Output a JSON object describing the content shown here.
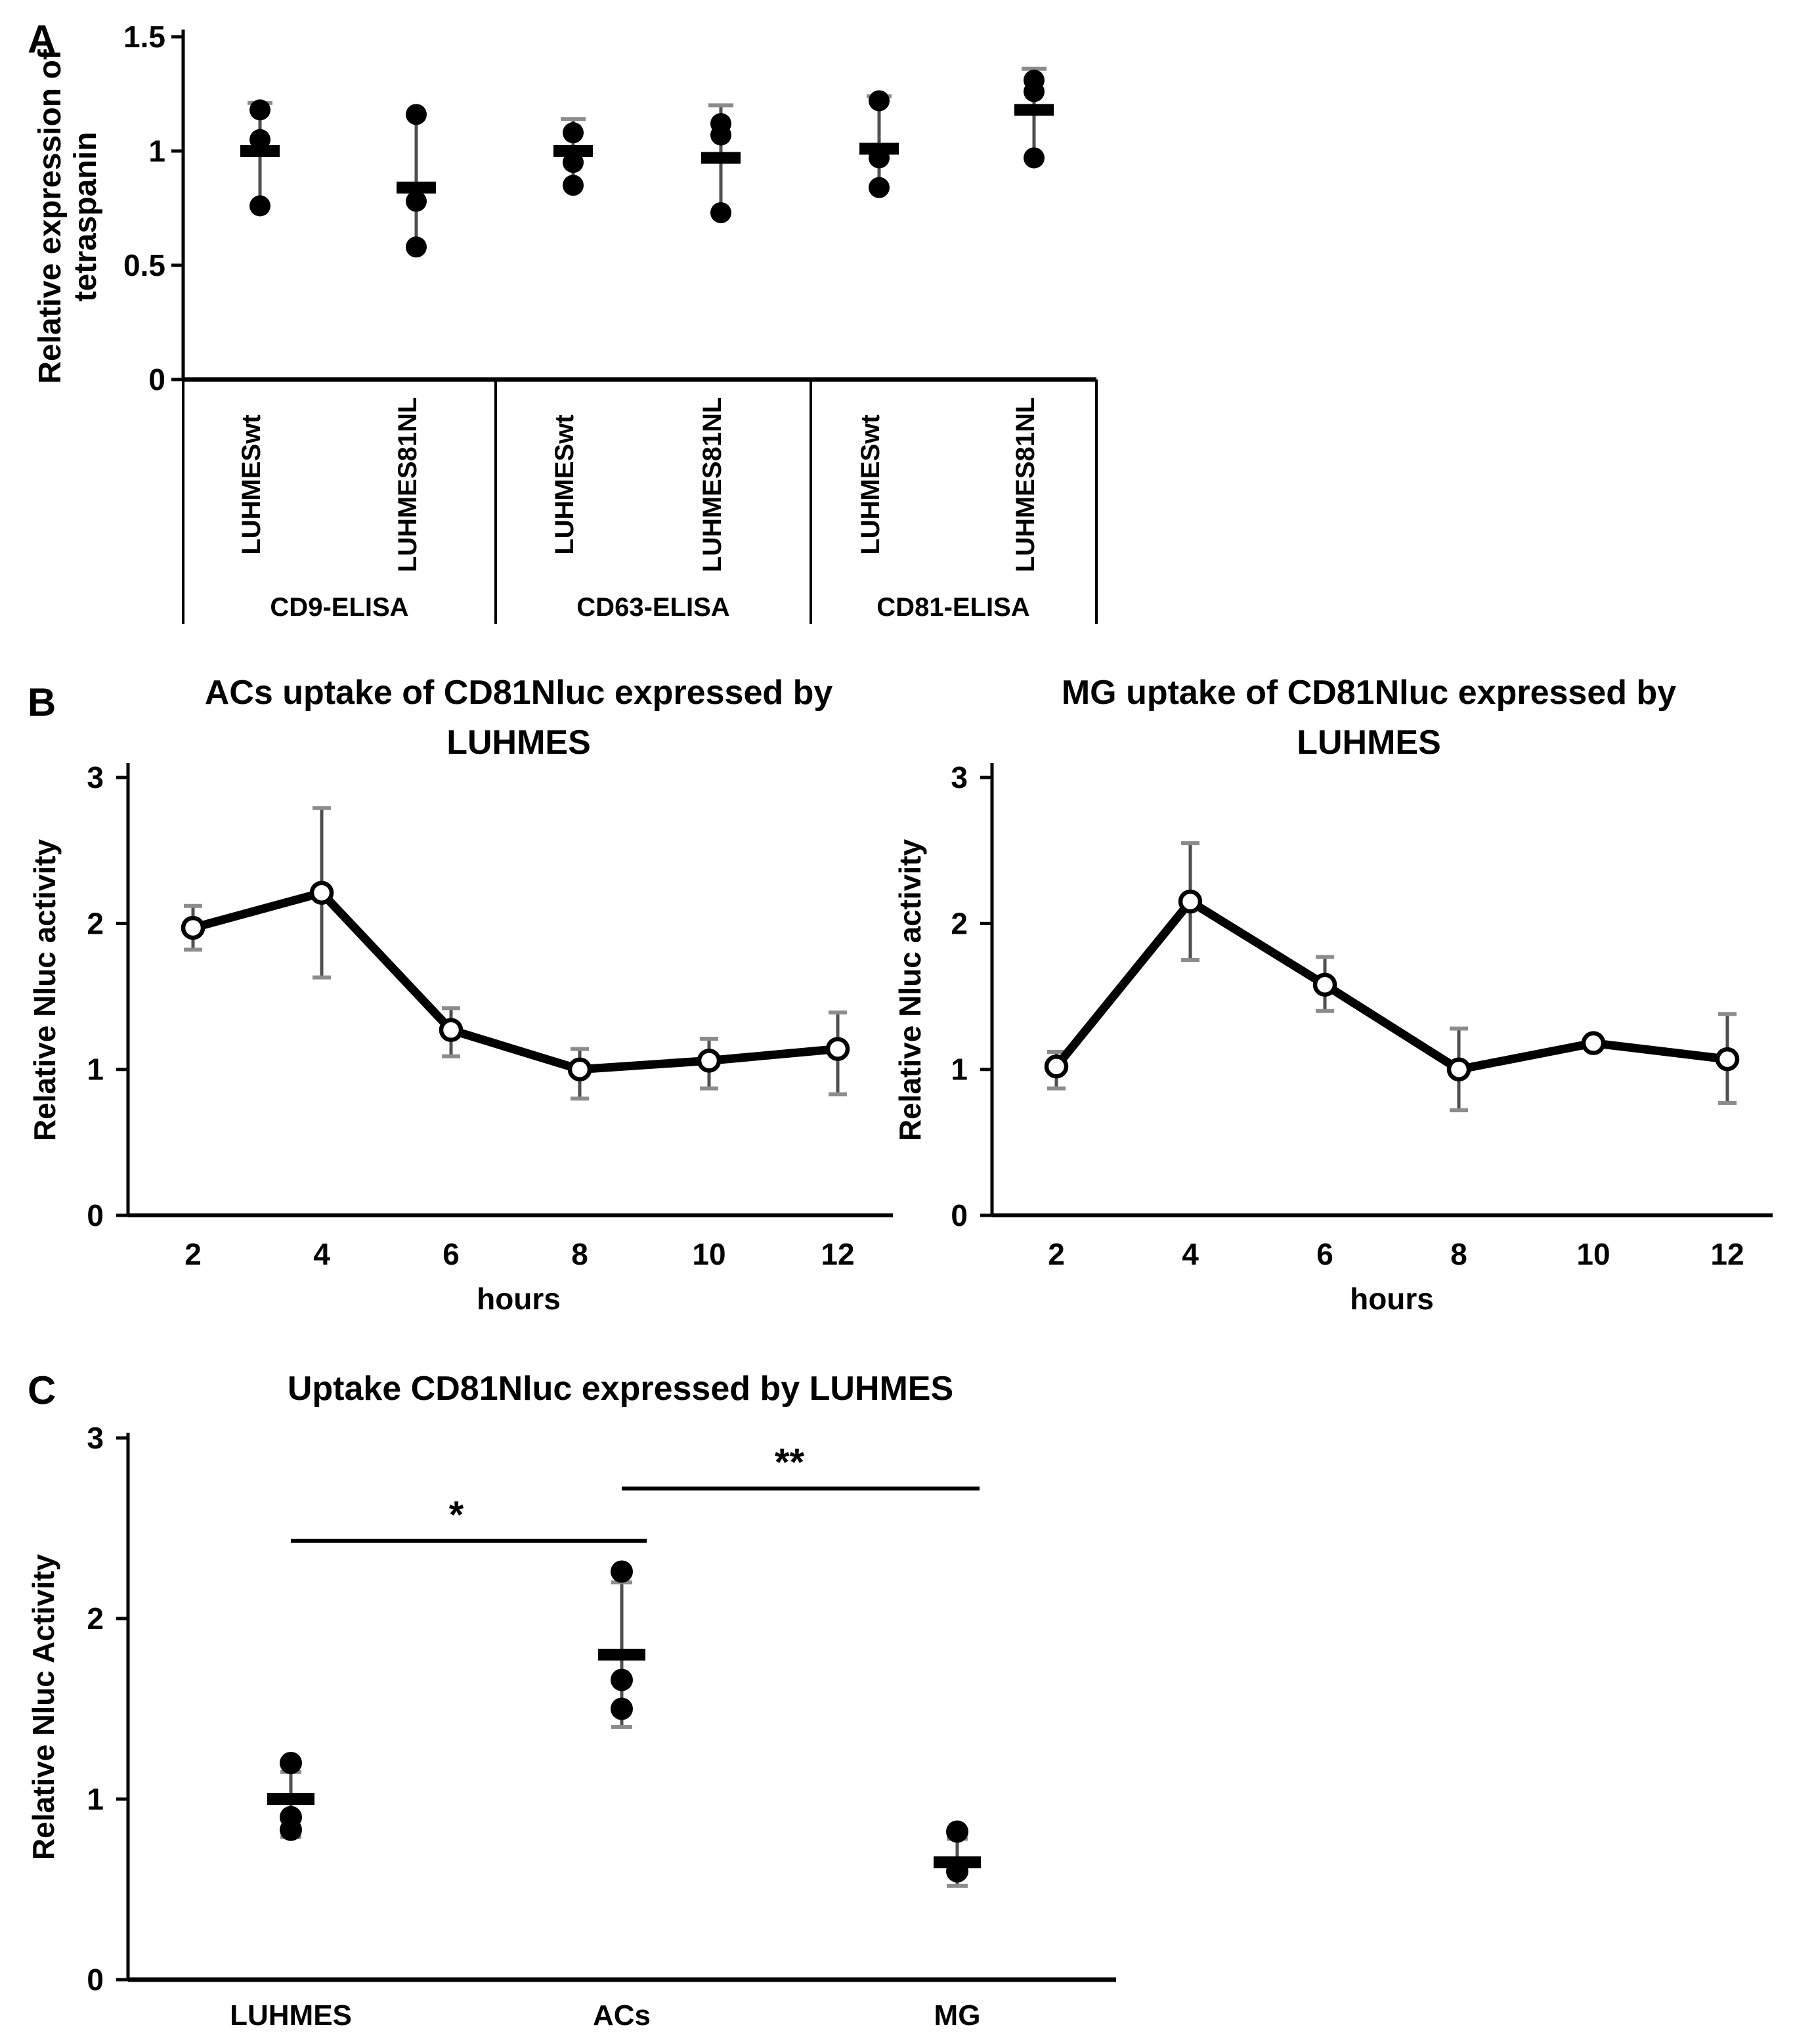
{
  "figure": {
    "background": "#ffffff",
    "ink": "#000000",
    "whisker_color": "#4f4f4f",
    "cap_color": "#8c8c8c"
  },
  "panel_labels": {
    "a": "A",
    "b": "B",
    "c": "C"
  },
  "chart_data": [
    {
      "id": "A",
      "type": "scatter",
      "ylabel_lines": [
        "Relative expression of",
        "tetraspanin"
      ],
      "ylim": [
        0,
        1.5
      ],
      "yticks": [
        "0",
        "0.5",
        "1",
        "1.5"
      ],
      "ytick_values": [
        0,
        0.5,
        1,
        1.5
      ],
      "sections": [
        "CD9-ELISA",
        "CD63-ELISA",
        "CD81-ELISA"
      ],
      "groups": [
        {
          "label": "LUHMESwt",
          "section": "CD9-ELISA",
          "points": [
            1.18,
            1.05,
            0.76
          ],
          "mean": 1.0,
          "err_low": 0.76,
          "err_high": 1.21,
          "cap_top": true,
          "cap_bottom": false
        },
        {
          "label": "LUHMES81NL",
          "section": "CD9-ELISA",
          "points": [
            1.16,
            0.78,
            0.58
          ],
          "mean": 0.84,
          "err_low": 0.58,
          "err_high": 1.13,
          "cap_top": false,
          "cap_bottom": false
        },
        {
          "label": "LUHMESwt",
          "section": "CD63-ELISA",
          "points": [
            1.08,
            0.95,
            0.85
          ],
          "mean": 1.0,
          "err_low": 0.85,
          "err_high": 1.14,
          "cap_top": true,
          "cap_bottom": false
        },
        {
          "label": "LUHMES81NL",
          "section": "CD63-ELISA",
          "points": [
            1.12,
            1.07,
            0.73
          ],
          "mean": 0.97,
          "err_low": 0.73,
          "err_high": 1.2,
          "cap_top": true,
          "cap_bottom": false
        },
        {
          "label": "LUHMESwt",
          "section": "CD81-ELISA",
          "points": [
            1.22,
            0.97,
            0.84
          ],
          "mean": 1.01,
          "err_low": 0.84,
          "err_high": 1.24,
          "cap_top": true,
          "cap_bottom": false
        },
        {
          "label": "LUHMES81NL",
          "section": "CD81-ELISA",
          "points": [
            1.31,
            1.26,
            0.97
          ],
          "mean": 1.18,
          "err_low": 0.97,
          "err_high": 1.36,
          "cap_top": true,
          "cap_bottom": false
        }
      ]
    },
    {
      "id": "B_left",
      "type": "line",
      "title_lines": [
        "ACs uptake of CD81Nluc expressed by",
        "LUHMES"
      ],
      "xlabel": "hours",
      "ylabel": "Relative Nluc activity",
      "x": [
        2,
        4,
        6,
        8,
        10,
        12
      ],
      "y": [
        1.97,
        2.21,
        1.27,
        1.0,
        1.06,
        1.14
      ],
      "err_low": [
        1.82,
        1.63,
        1.09,
        0.8,
        0.87,
        0.83
      ],
      "err_high": [
        2.12,
        2.79,
        1.42,
        1.14,
        1.21,
        1.39
      ],
      "ylim": [
        0,
        3
      ],
      "yticks": [
        "0",
        "1",
        "2",
        "3"
      ],
      "ytick_values": [
        0,
        1,
        2,
        3
      ]
    },
    {
      "id": "B_right",
      "type": "line",
      "title_lines": [
        "MG uptake of CD81Nluc expressed by",
        "LUHMES"
      ],
      "xlabel": "hours",
      "ylabel": "Relative Nluc activity",
      "x": [
        2,
        4,
        6,
        8,
        10,
        12
      ],
      "y": [
        1.02,
        2.15,
        1.58,
        1.0,
        1.18,
        1.07
      ],
      "err_low": [
        0.87,
        1.75,
        1.4,
        0.72,
        1.18,
        0.77
      ],
      "err_high": [
        1.12,
        2.55,
        1.77,
        1.28,
        1.18,
        1.38
      ],
      "ylim": [
        0,
        3
      ],
      "yticks": [
        "0",
        "1",
        "2",
        "3"
      ],
      "ytick_values": [
        0,
        1,
        2,
        3
      ]
    },
    {
      "id": "C",
      "type": "scatter",
      "title": "Uptake CD81Nluc expressed by LUHMES",
      "ylabel": "Relative Nluc Activity",
      "ylim": [
        0,
        3
      ],
      "yticks": [
        "0",
        "1",
        "2",
        "3"
      ],
      "ytick_values": [
        0,
        1,
        2,
        3
      ],
      "categories": [
        "LUHMES",
        "ACs",
        "MG"
      ],
      "groups": [
        {
          "label": "LUHMES",
          "points": [
            1.2,
            0.9,
            0.83
          ],
          "mean": 1.0,
          "err_low": 0.79,
          "err_high": 1.15,
          "cap_top": true,
          "cap_bottom": true
        },
        {
          "label": "ACs",
          "points": [
            2.26,
            1.66,
            1.5
          ],
          "mean": 1.8,
          "err_low": 1.4,
          "err_high": 2.2,
          "cap_top": true,
          "cap_bottom": true
        },
        {
          "label": "MG",
          "points": [
            0.82,
            0.6
          ],
          "mean": 0.65,
          "err_low": 0.52,
          "err_high": 0.78,
          "cap_top": true,
          "cap_bottom": true
        }
      ],
      "significance": [
        {
          "label": "*",
          "from": "LUHMES",
          "to": "ACs",
          "bar_y": 2.43
        },
        {
          "label": "**",
          "from": "ACs",
          "to": "MG",
          "bar_y": 2.72
        }
      ]
    }
  ]
}
